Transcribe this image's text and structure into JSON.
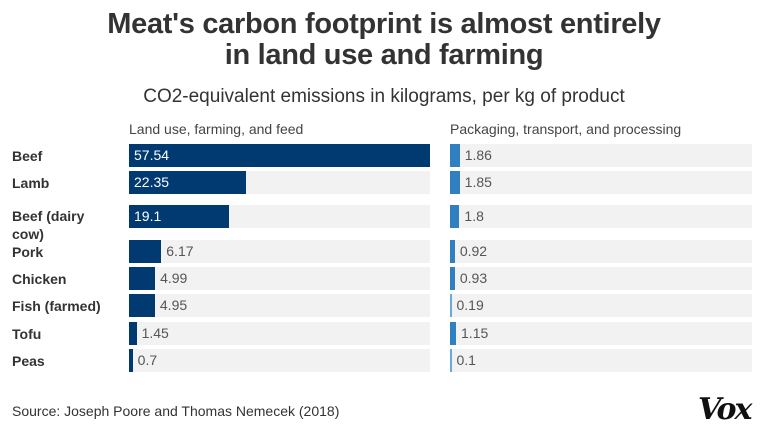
{
  "chart_data": {
    "type": "bar",
    "title": "Meat's carbon footprint is almost entirely in land use and farming",
    "title_lines": [
      "Meat's carbon footprint is almost entirely",
      "in land use and farming"
    ],
    "subtitle": "CO2-equivalent emissions in kilograms, per kg of product",
    "categories": [
      "Beef",
      "Lamb",
      "Beef (dairy cow)",
      "Pork",
      "Chicken",
      "Fish (farmed)",
      "Tofu",
      "Peas"
    ],
    "series": [
      {
        "name": "Land use, farming, and feed",
        "color": "#003a70",
        "values": [
          57.54,
          22.35,
          19.1,
          6.17,
          4.99,
          4.95,
          1.45,
          0.7
        ],
        "labels": [
          "57.54",
          "22.35",
          "19.1",
          "6.17",
          "4.99",
          "4.95",
          "1.45",
          "0.7"
        ]
      },
      {
        "name": "Packaging, transport, and processing",
        "color": "#2f7fc1",
        "values": [
          1.86,
          1.85,
          1.8,
          0.92,
          0.93,
          0.19,
          1.15,
          0.1
        ],
        "labels": [
          "1.86",
          "1.85",
          "1.8",
          "0.92",
          "0.93",
          "0.19",
          "1.15",
          "0.1"
        ]
      }
    ],
    "xlim": [
      0,
      57.54
    ]
  },
  "source": "Source: Joseph Poore and Thomas Nemecek (2018)",
  "logo": "Vox"
}
